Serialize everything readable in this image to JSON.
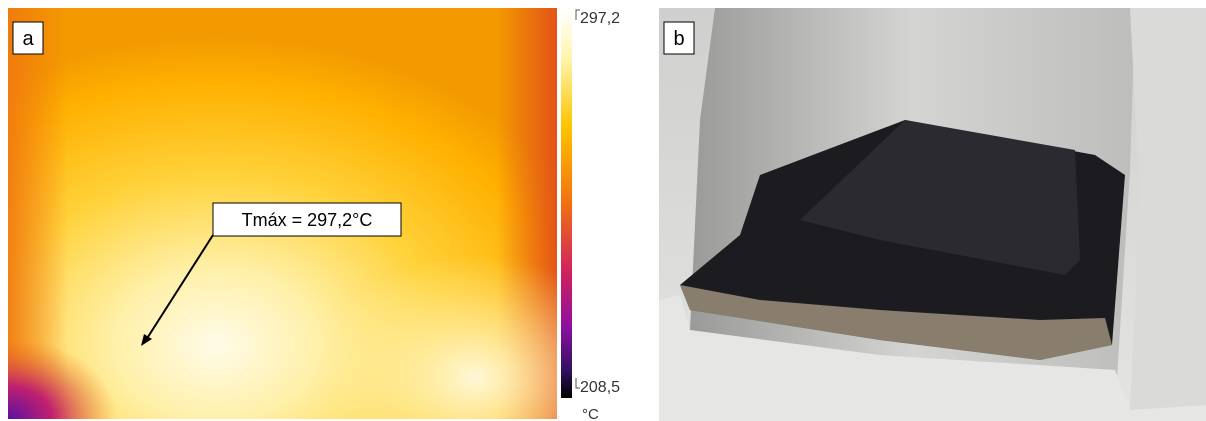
{
  "panels": [
    {
      "label": "a",
      "annotation": "Tmáx = 297,2°C",
      "colorbar": {
        "max_label": "297,2",
        "min_label": "208,5",
        "unit": "°C"
      }
    },
    {
      "label": "b"
    }
  ]
}
